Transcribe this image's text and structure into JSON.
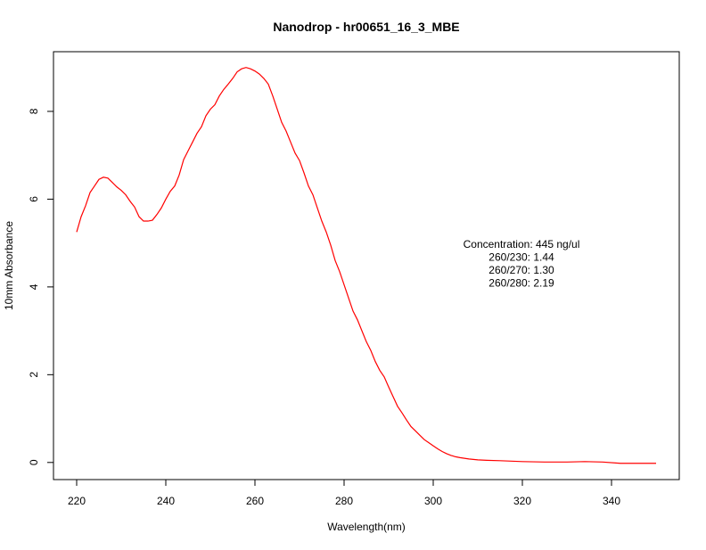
{
  "chart_data": {
    "type": "line",
    "title": "Nanodrop - hr00651_16_3_MBE",
    "xlabel": "Wavelength(nm)",
    "ylabel": "10mm Absorbance",
    "annotations": [
      "Concentration: 445 ng/ul",
      "260/230: 1.44",
      "260/270: 1.30",
      "260/280: 2.19"
    ],
    "x": [
      220,
      221,
      222,
      223,
      224,
      225,
      226,
      227,
      228,
      229,
      230,
      231,
      232,
      233,
      234,
      235,
      236,
      237,
      238,
      239,
      240,
      241,
      242,
      243,
      244,
      245,
      246,
      247,
      248,
      249,
      250,
      251,
      252,
      253,
      254,
      255,
      256,
      257,
      258,
      259,
      260,
      261,
      262,
      263,
      264,
      265,
      266,
      267,
      268,
      269,
      270,
      271,
      272,
      273,
      274,
      275,
      276,
      277,
      278,
      279,
      280,
      281,
      282,
      283,
      284,
      285,
      286,
      287,
      288,
      289,
      290,
      291,
      292,
      293,
      294,
      295,
      296,
      297,
      298,
      299,
      300,
      301,
      302,
      303,
      304,
      305,
      306,
      308,
      310,
      312,
      315,
      320,
      325,
      330,
      334,
      338,
      342,
      346,
      350
    ],
    "series": [
      {
        "color": "#ff0000",
        "values": [
          5.25,
          5.6,
          5.85,
          6.15,
          6.3,
          6.45,
          6.5,
          6.48,
          6.38,
          6.28,
          6.2,
          6.1,
          5.95,
          5.82,
          5.6,
          5.5,
          5.5,
          5.52,
          5.65,
          5.8,
          6.0,
          6.18,
          6.3,
          6.55,
          6.9,
          7.1,
          7.3,
          7.5,
          7.65,
          7.9,
          8.05,
          8.15,
          8.35,
          8.5,
          8.62,
          8.75,
          8.9,
          8.97,
          9.0,
          8.97,
          8.92,
          8.85,
          8.75,
          8.62,
          8.35,
          8.05,
          7.75,
          7.55,
          7.3,
          7.05,
          6.88,
          6.6,
          6.3,
          6.1,
          5.8,
          5.5,
          5.25,
          4.95,
          4.6,
          4.35,
          4.05,
          3.75,
          3.45,
          3.25,
          3.0,
          2.75,
          2.55,
          2.3,
          2.1,
          1.95,
          1.72,
          1.5,
          1.28,
          1.13,
          0.97,
          0.82,
          0.72,
          0.62,
          0.52,
          0.45,
          0.38,
          0.31,
          0.25,
          0.2,
          0.16,
          0.13,
          0.11,
          0.08,
          0.06,
          0.05,
          0.04,
          0.02,
          0.01,
          0.01,
          0.02,
          0.01,
          -0.02,
          -0.02,
          -0.02
        ]
      }
    ],
    "xlim": [
      214.8,
      355.2
    ],
    "ylim": [
      -0.39,
      9.36
    ],
    "xticks": [
      220,
      240,
      260,
      280,
      300,
      320,
      340
    ],
    "yticks": [
      0,
      2,
      4,
      6,
      8
    ]
  }
}
